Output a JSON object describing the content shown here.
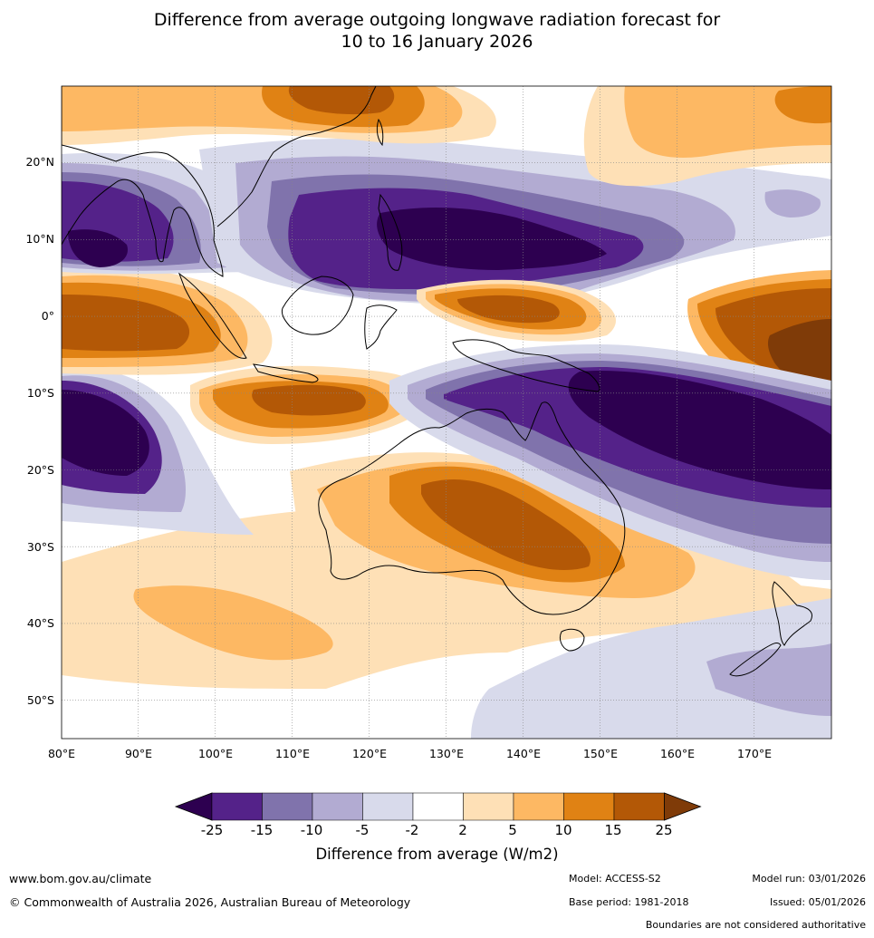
{
  "title": {
    "line1": "Difference from average outgoing longwave radiation forecast for",
    "line2": "10 to 16 January 2026"
  },
  "map": {
    "lat_labels": [
      "20°N",
      "10°N",
      "0°",
      "10°S",
      "20°S",
      "30°S",
      "40°S",
      "50°S"
    ],
    "lon_labels": [
      "80°E",
      "90°E",
      "100°E",
      "110°E",
      "120°E",
      "130°E",
      "140°E",
      "150°E",
      "160°E",
      "170°E"
    ],
    "lon_range": [
      80,
      180
    ],
    "lat_range": [
      -55,
      30
    ]
  },
  "colorbar": {
    "ticks": [
      "-25",
      "-15",
      "-10",
      "-5",
      "-2",
      "2",
      "5",
      "10",
      "15",
      "25"
    ],
    "colors": [
      "#2d0050",
      "#542289",
      "#8073ac",
      "#b2abd2",
      "#d8daeb",
      "#ffffff",
      "#fee0b6",
      "#fdb863",
      "#e08214",
      "#b35806",
      "#7f3b08"
    ],
    "label": "Difference from average (W/m2)"
  },
  "footer": {
    "url": "www.bom.gov.au/climate",
    "copyright": "© Commonwealth of Australia 2026, Australian Bureau of Meteorology",
    "model": "Model: ACCESS-S2",
    "base_period": "Base period: 1981-2018",
    "model_run": "Model run: 03/01/2026",
    "issued": "Issued: 05/01/2026",
    "disclaimer": "Boundaries are not considered authoritative"
  }
}
